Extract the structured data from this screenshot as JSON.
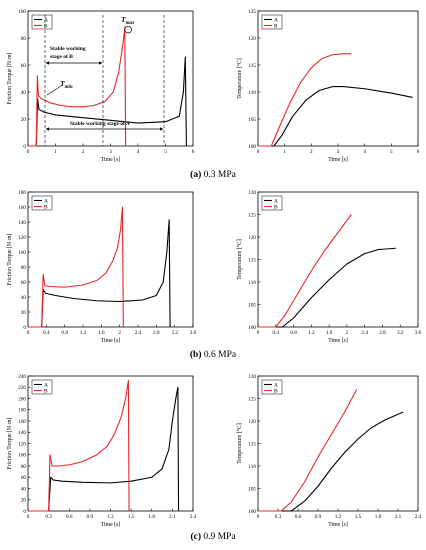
{
  "colors": {
    "A": "#000000",
    "B": "#e8262a"
  },
  "captions": [
    {
      "letter": "(a)",
      "text": " 0.3 MPa"
    },
    {
      "letter": "(b)",
      "text": " 0.6 MPa"
    },
    {
      "letter": "(c)",
      "text": " 0.9 MPa"
    }
  ],
  "annotations": {
    "tmax": "T",
    "tmax_sub": "max",
    "tmin": "T",
    "tmin_sub": "min",
    "stable_b_line1": "Stable working",
    "stable_b_line2": "stage of B",
    "stable_a": "Stable working stage of A"
  },
  "chart_data": [
    {
      "type": "line",
      "panel": "a-torque",
      "xlabel": "Time [s]",
      "ylabel": "Friction Torque [N·m]",
      "xlim": [
        0,
        6
      ],
      "ylim": [
        0,
        100
      ],
      "xticks": [
        0,
        1,
        2,
        3,
        4,
        5,
        6
      ],
      "yticks": [
        0,
        20,
        40,
        60,
        80,
        100
      ],
      "legend": "top-left",
      "series": [
        {
          "name": "A",
          "x": [
            0,
            0.3,
            0.35,
            0.4,
            0.6,
            1.0,
            2.0,
            3.0,
            4.0,
            5.0,
            5.5,
            5.65,
            5.72,
            5.76
          ],
          "y": [
            0,
            0,
            35,
            27,
            25,
            23,
            21,
            19,
            17,
            18,
            22,
            40,
            66,
            0
          ]
        },
        {
          "name": "B",
          "x": [
            0,
            0.3,
            0.34,
            0.38,
            0.5,
            0.8,
            1.2,
            1.6,
            2.0,
            2.4,
            2.8,
            3.1,
            3.3,
            3.45,
            3.52,
            3.55
          ],
          "y": [
            0,
            0,
            52,
            37,
            35,
            32,
            30,
            29,
            29,
            30,
            33,
            40,
            55,
            75,
            88,
            0
          ]
        }
      ]
    },
    {
      "type": "line",
      "panel": "a-temperature",
      "xlabel": "Time [s]",
      "ylabel": "Temperature [°C]",
      "xlim": [
        0,
        6
      ],
      "ylim": [
        100,
        125
      ],
      "xticks": [
        0,
        1,
        2,
        3,
        4,
        5,
        6
      ],
      "yticks": [
        100,
        105,
        110,
        115,
        120,
        125
      ],
      "legend": "top-left",
      "series": [
        {
          "name": "A",
          "x": [
            0,
            0.6,
            0.9,
            1.3,
            1.8,
            2.3,
            2.8,
            3.2,
            4.0,
            5.0,
            5.8
          ],
          "y": [
            100,
            100,
            102,
            105.5,
            108.5,
            110.3,
            111,
            111,
            110.6,
            109.8,
            109
          ]
        },
        {
          "name": "B",
          "x": [
            0,
            0.5,
            0.8,
            1.2,
            1.6,
            2.0,
            2.4,
            2.8,
            3.2,
            3.5
          ],
          "y": [
            100,
            100,
            103.5,
            108,
            111.8,
            114.5,
            116.2,
            116.9,
            117.1,
            117.1
          ]
        }
      ]
    },
    {
      "type": "line",
      "panel": "b-torque",
      "xlabel": "Time [s]",
      "ylabel": "Friction Torque [N·m]",
      "xlim": [
        0,
        3.6
      ],
      "ylim": [
        0,
        180
      ],
      "xticks": [
        0,
        0.4,
        0.8,
        1.2,
        1.6,
        2.0,
        2.4,
        2.8,
        3.2,
        3.6
      ],
      "yticks": [
        0,
        20,
        40,
        60,
        80,
        100,
        120,
        140,
        160,
        180
      ],
      "legend": "top-left",
      "series": [
        {
          "name": "A",
          "x": [
            0,
            0.3,
            0.33,
            0.38,
            0.6,
            1.0,
            1.5,
            2.0,
            2.5,
            2.8,
            2.95,
            3.03,
            3.08,
            3.1
          ],
          "y": [
            0,
            0,
            50,
            45,
            42,
            38,
            35,
            34,
            36,
            42,
            60,
            100,
            143,
            0
          ]
        },
        {
          "name": "B",
          "x": [
            0,
            0.3,
            0.33,
            0.37,
            0.5,
            0.8,
            1.2,
            1.5,
            1.7,
            1.85,
            1.95,
            2.02,
            2.06,
            2.08
          ],
          "y": [
            0,
            0,
            70,
            55,
            54,
            53,
            56,
            62,
            72,
            88,
            105,
            130,
            160,
            0
          ]
        }
      ]
    },
    {
      "type": "line",
      "panel": "b-temperature",
      "xlabel": "Time [s]",
      "ylabel": "Temperature [°C]",
      "xlim": [
        0,
        3.6
      ],
      "ylim": [
        100,
        130
      ],
      "xticks": [
        0,
        0.4,
        0.8,
        1.2,
        1.6,
        2.0,
        2.4,
        2.8,
        3.2,
        3.6
      ],
      "yticks": [
        100,
        105,
        110,
        115,
        120,
        125,
        130
      ],
      "legend": "top-left",
      "series": [
        {
          "name": "A",
          "x": [
            0,
            0.55,
            0.8,
            1.2,
            1.6,
            2.0,
            2.4,
            2.7,
            3.1
          ],
          "y": [
            100,
            100,
            102,
            106.5,
            110.5,
            114,
            116.3,
            117.2,
            117.5
          ]
        },
        {
          "name": "B",
          "x": [
            0,
            0.4,
            0.6,
            0.9,
            1.2,
            1.5,
            1.8,
            2.1
          ],
          "y": [
            100,
            100,
            102.5,
            107.5,
            112.5,
            117,
            121,
            125
          ]
        }
      ]
    },
    {
      "type": "line",
      "panel": "c-torque",
      "xlabel": "Time [s]",
      "ylabel": "Friction Torque [N·m]",
      "xlim": [
        0,
        2.4
      ],
      "ylim": [
        0,
        240
      ],
      "xticks": [
        0,
        0.3,
        0.6,
        0.9,
        1.2,
        1.5,
        1.8,
        2.1,
        2.4
      ],
      "yticks": [
        0,
        20,
        40,
        60,
        80,
        100,
        120,
        140,
        160,
        180,
        200,
        220,
        240
      ],
      "legend": "top-left",
      "series": [
        {
          "name": "A",
          "x": [
            0,
            0.3,
            0.33,
            0.37,
            0.5,
            0.8,
            1.2,
            1.5,
            1.8,
            1.95,
            2.05,
            2.1,
            2.15,
            2.18,
            2.19
          ],
          "y": [
            0,
            0,
            60,
            55,
            53,
            51,
            50,
            53,
            60,
            75,
            110,
            160,
            200,
            220,
            0
          ]
        },
        {
          "name": "B",
          "x": [
            0,
            0.3,
            0.32,
            0.35,
            0.45,
            0.6,
            0.8,
            1.0,
            1.15,
            1.25,
            1.35,
            1.42,
            1.46,
            1.47
          ],
          "y": [
            0,
            0,
            100,
            80,
            80,
            82,
            88,
            100,
            115,
            135,
            165,
            200,
            232,
            0
          ]
        }
      ]
    },
    {
      "type": "line",
      "panel": "c-temperature",
      "xlabel": "Time [s]",
      "ylabel": "Temperature [°C]",
      "xlim": [
        0,
        2.4
      ],
      "ylim": [
        100,
        130
      ],
      "xticks": [
        0,
        0.3,
        0.6,
        0.9,
        1.2,
        1.5,
        1.8,
        2.1,
        2.4
      ],
      "yticks": [
        100,
        105,
        110,
        115,
        120,
        125,
        130
      ],
      "legend": "top-left",
      "series": [
        {
          "name": "A",
          "x": [
            0,
            0.5,
            0.7,
            0.9,
            1.1,
            1.3,
            1.5,
            1.7,
            1.9,
            2.18
          ],
          "y": [
            100,
            100,
            102.2,
            105.5,
            109.5,
            113,
            116,
            118.5,
            120.2,
            122
          ]
        },
        {
          "name": "B",
          "x": [
            0,
            0.35,
            0.5,
            0.7,
            0.9,
            1.1,
            1.3,
            1.48
          ],
          "y": [
            100,
            100,
            102,
            106.5,
            112,
            117,
            122,
            127
          ]
        }
      ]
    }
  ]
}
